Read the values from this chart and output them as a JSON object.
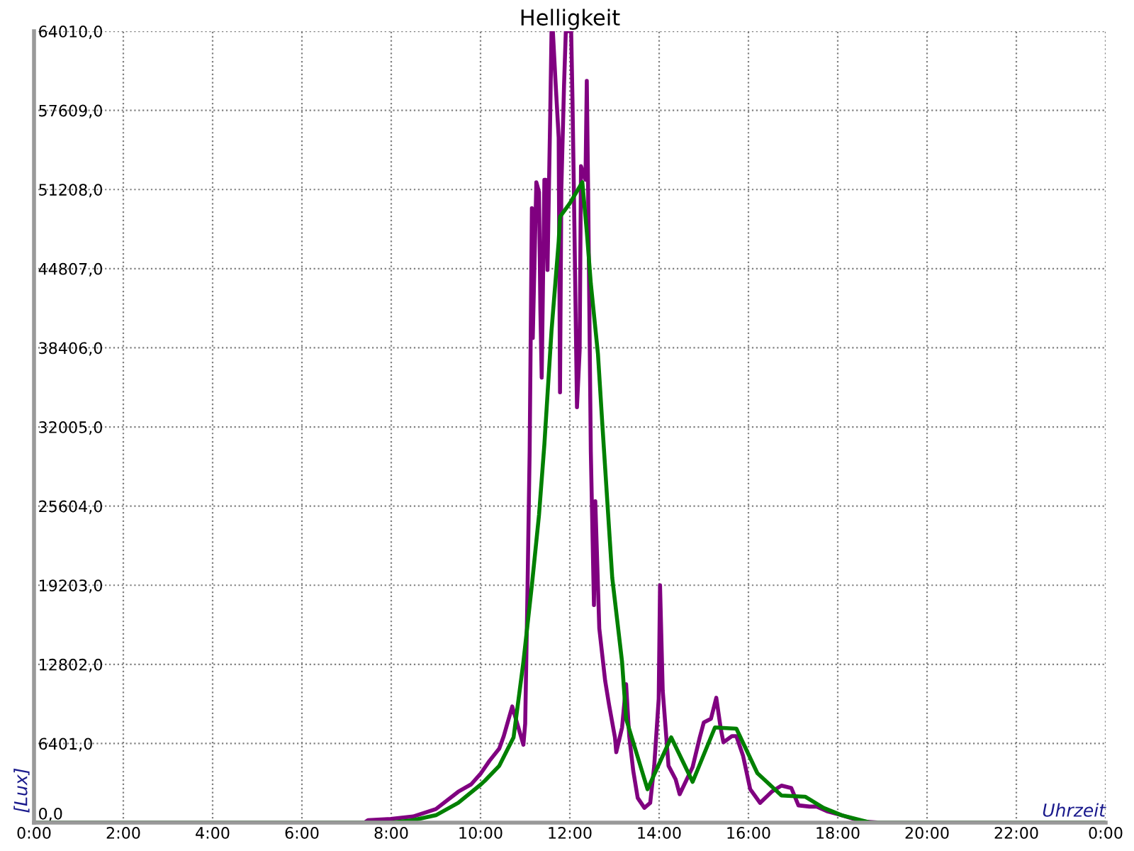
{
  "chart_data": {
    "type": "line",
    "title": "Helligkeit",
    "xlabel": "Uhrzeit",
    "ylabel": "[Lux]",
    "xlim": [
      0,
      24
    ],
    "ylim": [
      0,
      64010
    ],
    "xticks": [
      {
        "value": 0,
        "label": "0:00"
      },
      {
        "value": 2,
        "label": "2:00"
      },
      {
        "value": 4,
        "label": "4:00"
      },
      {
        "value": 6,
        "label": "6:00"
      },
      {
        "value": 8,
        "label": "8:00"
      },
      {
        "value": 10,
        "label": "10:00"
      },
      {
        "value": 12,
        "label": "12:00"
      },
      {
        "value": 14,
        "label": "14:00"
      },
      {
        "value": 16,
        "label": "16:00"
      },
      {
        "value": 18,
        "label": "18:00"
      },
      {
        "value": 20,
        "label": "20:00"
      },
      {
        "value": 22,
        "label": "22:00"
      },
      {
        "value": 24,
        "label": "0:00"
      }
    ],
    "yticks": [
      {
        "value": 0,
        "label": "0,0"
      },
      {
        "value": 6401,
        "label": "6401,0"
      },
      {
        "value": 12802,
        "label": "12802,0"
      },
      {
        "value": 19203,
        "label": "19203,0"
      },
      {
        "value": 25604,
        "label": "25604,0"
      },
      {
        "value": 32005,
        "label": "32005,0"
      },
      {
        "value": 38406,
        "label": "38406,0"
      },
      {
        "value": 44807,
        "label": "44807,0"
      },
      {
        "value": 51208,
        "label": "51208,0"
      },
      {
        "value": 57609,
        "label": "57609,0"
      },
      {
        "value": 64010,
        "label": "64010,0"
      }
    ],
    "grid": true,
    "legend": false,
    "marker": "none",
    "line_style": "solid",
    "series": [
      {
        "color": "#800080",
        "x": [
          0,
          7.4,
          7.48,
          7.99,
          8.49,
          9.0,
          9.5,
          9.79,
          10.01,
          10.2,
          10.42,
          10.52,
          10.71,
          10.96,
          11.0,
          11.05,
          11.1,
          11.15,
          11.17,
          11.25,
          11.31,
          11.34,
          11.37,
          11.43,
          11.46,
          11.5,
          11.56,
          11.59,
          11.62,
          11.68,
          11.75,
          11.78,
          11.81,
          11.87,
          11.91,
          11.95,
          12.03,
          12.06,
          12.09,
          12.16,
          12.22,
          12.25,
          12.35,
          12.38,
          12.41,
          12.47,
          12.54,
          12.57,
          12.66,
          12.79,
          12.88,
          13.01,
          13.04,
          13.17,
          13.26,
          13.33,
          13.42,
          13.52,
          13.67,
          13.8,
          13.89,
          13.99,
          14.02,
          14.08,
          14.21,
          14.37,
          14.46,
          14.75,
          14.91,
          15.0,
          15.16,
          15.28,
          15.38,
          15.44,
          15.63,
          15.73,
          15.88,
          16.04,
          16.26,
          16.52,
          16.74,
          16.96,
          17.12,
          17.37,
          17.53,
          17.78,
          18.09,
          18.54,
          18.95,
          24
        ],
        "values": [
          0,
          0,
          200,
          300,
          500,
          1100,
          2500,
          3100,
          4000,
          5000,
          6000,
          7000,
          9400,
          6300,
          8000,
          18400,
          30000,
          49700,
          39200,
          51800,
          51000,
          41500,
          36000,
          52000,
          52000,
          44700,
          57100,
          64010,
          64010,
          59900,
          55400,
          34800,
          51300,
          59600,
          64010,
          64010,
          64010,
          58300,
          51300,
          33600,
          38200,
          53100,
          52000,
          60000,
          51000,
          30000,
          17600,
          26000,
          15700,
          11500,
          9500,
          6900,
          5700,
          7700,
          11200,
          7000,
          4200,
          2000,
          1200,
          1600,
          4600,
          10000,
          19200,
          10700,
          4600,
          3500,
          2300,
          4500,
          6900,
          8100,
          8400,
          10100,
          7600,
          6500,
          7000,
          7000,
          5400,
          2700,
          1600,
          2500,
          3000,
          2800,
          1400,
          1300,
          1300,
          900,
          600,
          100,
          0,
          0
        ]
      },
      {
        "color": "#008000",
        "x": [
          0,
          7.99,
          8.49,
          9.0,
          9.5,
          10.01,
          10.1,
          10.42,
          10.74,
          10.96,
          11.15,
          11.31,
          11.43,
          11.59,
          11.75,
          11.78,
          12.0,
          12.28,
          12.38,
          12.47,
          12.63,
          12.73,
          12.95,
          13.17,
          13.26,
          13.74,
          14.27,
          14.75,
          15.25,
          15.73,
          16.2,
          16.74,
          17.27,
          17.68,
          18.09,
          18.73,
          24
        ],
        "values": [
          0,
          0,
          200,
          600,
          1600,
          3100,
          3400,
          4600,
          6900,
          13000,
          19200,
          24900,
          30600,
          39800,
          47000,
          49000,
          50100,
          51800,
          47800,
          43600,
          37900,
          32100,
          19800,
          13000,
          8400,
          2700,
          6900,
          3300,
          7700,
          7600,
          4000,
          2200,
          2100,
          1200,
          600,
          0,
          0
        ]
      }
    ]
  }
}
